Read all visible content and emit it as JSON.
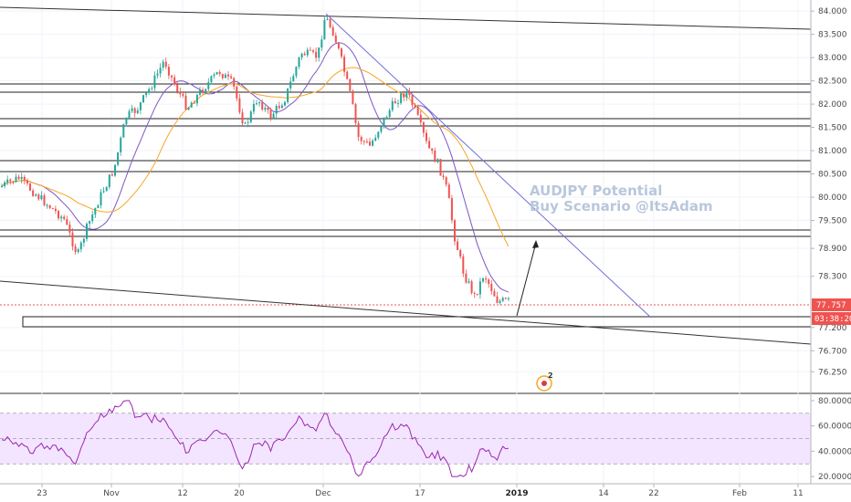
{
  "chart_data": {
    "type": "candlestick",
    "symbol_annotation": [
      "AUDJPY Potential",
      "Buy Scenario @ItsAdam"
    ],
    "y_axis": {
      "ticks": [
        "84.000",
        "83.500",
        "83.000",
        "82.500",
        "82.000",
        "81.500",
        "81.000",
        "80.500",
        "80.000",
        "79.500",
        "78.900",
        "78.300",
        "77.200",
        "76.700",
        "76.250"
      ],
      "ylim": [
        76.0,
        84.1
      ]
    },
    "x_axis": {
      "ticks": [
        {
          "label": "23",
          "bold": false
        },
        {
          "label": "Nov",
          "bold": false
        },
        {
          "label": "12",
          "bold": false
        },
        {
          "label": "20",
          "bold": false
        },
        {
          "label": "Dec",
          "bold": false
        },
        {
          "label": "17",
          "bold": false
        },
        {
          "label": "2019",
          "bold": true
        },
        {
          "label": "14",
          "bold": false
        },
        {
          "label": "22",
          "bold": false
        },
        {
          "label": "Feb",
          "bold": false
        },
        {
          "label": "11",
          "bold": false
        }
      ]
    },
    "last_price": {
      "value": "77.757",
      "countdown": "03:38:20",
      "color": "#ef5350"
    },
    "colors": {
      "up": "#26a69a",
      "down": "#ef5350",
      "ma_fast": "#7e57c2",
      "ma_slow": "#f6a623",
      "trendline": "#6f6fd8",
      "rsi": "#9c27b0",
      "rsi_band": "#f3e5ff"
    },
    "rsi": {
      "ticks": [
        "80.0000",
        "60.0000",
        "40.0000",
        "20.0000"
      ],
      "ylim": [
        15,
        85
      ],
      "band": [
        30,
        70
      ]
    },
    "event_marker": {
      "count": "2"
    }
  }
}
